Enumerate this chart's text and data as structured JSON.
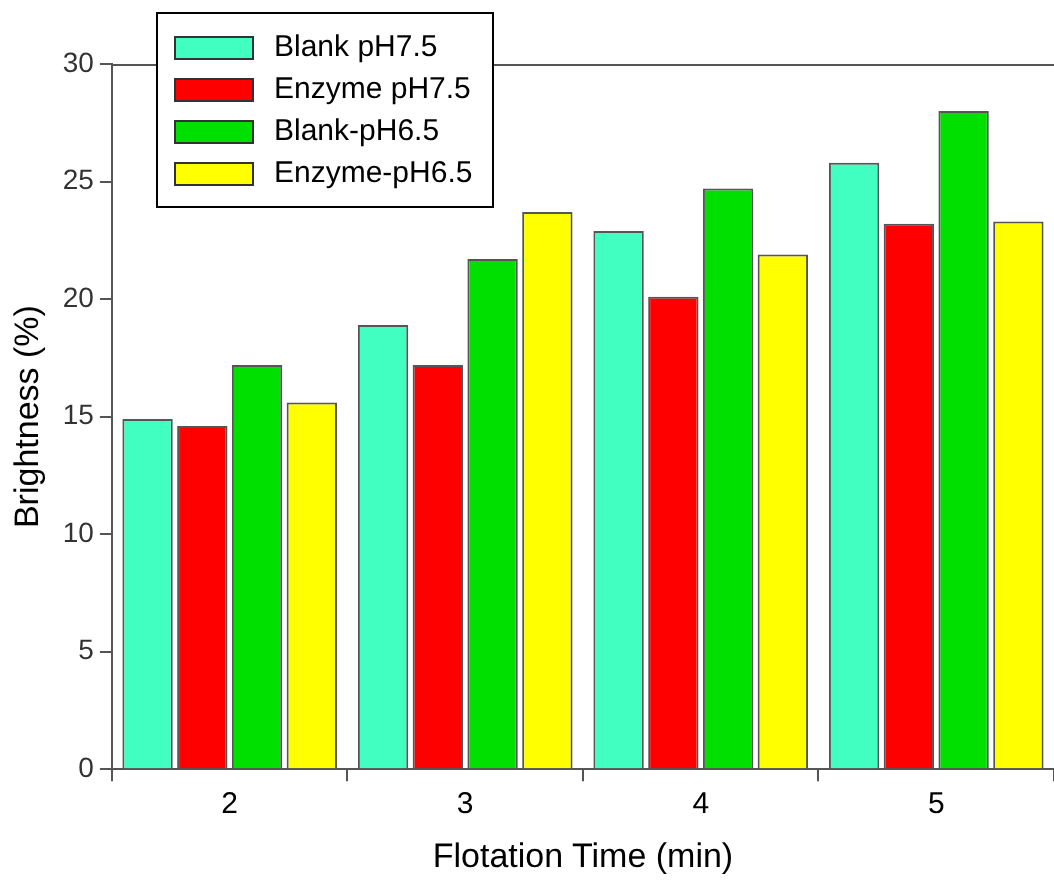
{
  "chart_data": {
    "type": "bar",
    "xlabel": "Flotation Time (min)",
    "ylabel": "Brightness (%)",
    "categories": [
      "2",
      "3",
      "4",
      "5"
    ],
    "series": [
      {
        "name": "Blank pH7.5",
        "color": "#40ffc0",
        "values": [
          14.9,
          18.9,
          22.9,
          25.8
        ]
      },
      {
        "name": "Enzyme pH7.5",
        "color": "#ff0000",
        "values": [
          14.6,
          17.2,
          20.1,
          23.2
        ]
      },
      {
        "name": "Blank-pH6.5",
        "color": "#00e000",
        "values": [
          17.2,
          21.7,
          24.7,
          28.0
        ]
      },
      {
        "name": "Enzyme-pH6.5",
        "color": "#ffff00",
        "values": [
          15.6,
          23.7,
          21.9,
          23.3
        ]
      }
    ],
    "ylim": [
      0,
      30
    ],
    "yticks": [
      0,
      5,
      10,
      15,
      20,
      25,
      30
    ],
    "grid": false,
    "legend": "top left"
  }
}
